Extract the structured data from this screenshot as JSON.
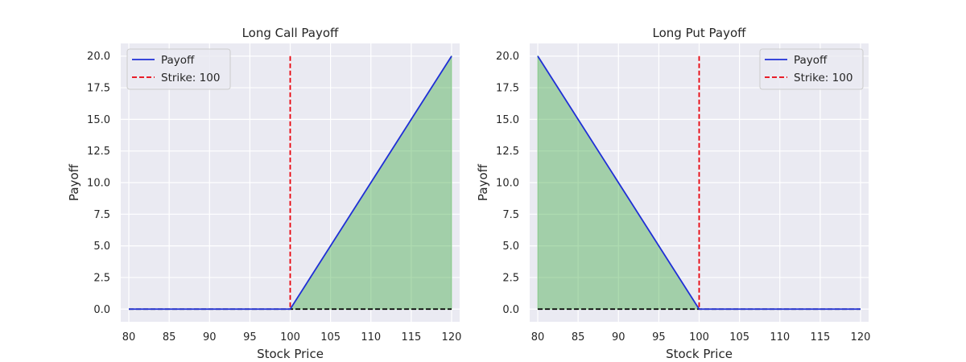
{
  "chart_data": [
    {
      "type": "line",
      "title": "Long Call Payoff",
      "xlabel": "Stock Price",
      "ylabel": "Payoff",
      "xlim": [
        79,
        121
      ],
      "ylim": [
        -1,
        21
      ],
      "xticks": [
        "80",
        "85",
        "90",
        "95",
        "100",
        "105",
        "110",
        "115",
        "120"
      ],
      "yticks": [
        "0.0",
        "2.5",
        "5.0",
        "7.5",
        "10.0",
        "12.5",
        "15.0",
        "17.5",
        "20.0"
      ],
      "x": [
        80,
        100,
        120
      ],
      "series": [
        {
          "name": "Payoff",
          "values": [
            0,
            0,
            20
          ],
          "color": "#1f2fd6",
          "style": "solid"
        }
      ],
      "strike": {
        "label": "Strike: 100",
        "value": 100,
        "color": "#e8000b",
        "style": "dashed"
      },
      "zero_line": {
        "value": 0,
        "color": "#000000",
        "style": "dashed"
      },
      "fill_color": "#4caf50",
      "grid": true,
      "legend": "top-left"
    },
    {
      "type": "line",
      "title": "Long Put Payoff",
      "xlabel": "Stock Price",
      "ylabel": "Payoff",
      "xlim": [
        79,
        121
      ],
      "ylim": [
        -1,
        21
      ],
      "xticks": [
        "80",
        "85",
        "90",
        "95",
        "100",
        "105",
        "110",
        "115",
        "120"
      ],
      "yticks": [
        "0.0",
        "2.5",
        "5.0",
        "7.5",
        "10.0",
        "12.5",
        "15.0",
        "17.5",
        "20.0"
      ],
      "x": [
        80,
        100,
        120
      ],
      "series": [
        {
          "name": "Payoff",
          "values": [
            20,
            0,
            0
          ],
          "color": "#1f2fd6",
          "style": "solid"
        }
      ],
      "strike": {
        "label": "Strike: 100",
        "value": 100,
        "color": "#e8000b",
        "style": "dashed"
      },
      "zero_line": {
        "value": 0,
        "color": "#000000",
        "style": "dashed"
      },
      "fill_color": "#4caf50",
      "grid": true,
      "legend": "top-right"
    }
  ]
}
